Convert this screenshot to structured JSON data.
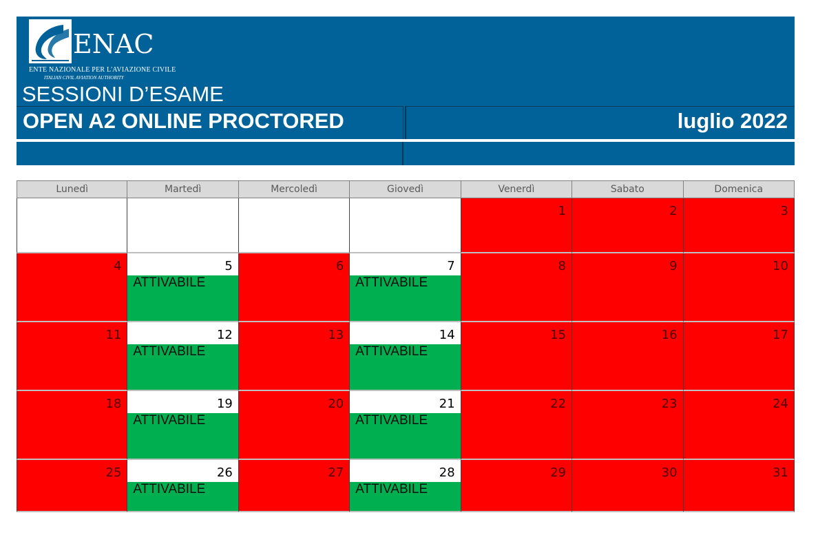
{
  "header": {
    "logo_word": "ENAC",
    "logo_sub1": "ENTE NAZIONALE PER L'AVIAZIONE CIVILE",
    "logo_sub2": "ITALIAN CIVIL AVIATION AUTHORITY",
    "sessions_title": "SESSIONI D’ESAME",
    "exam_title": "OPEN A2 ONLINE PROCTORED",
    "month": "luglio 2022"
  },
  "colors": {
    "header_blue": "#01629a",
    "unavailable_red": "#ff0000",
    "available_green": "#00b050",
    "weekday_header_gray": "#d9d9d9"
  },
  "weekdays": [
    "Lunedì",
    "Martedì",
    "Mercoledì",
    "Giovedì",
    "Venerdì",
    "Sabato",
    "Domenica"
  ],
  "weeks": [
    [
      {
        "day": "",
        "status": "empty",
        "label": ""
      },
      {
        "day": "",
        "status": "empty",
        "label": ""
      },
      {
        "day": "",
        "status": "empty",
        "label": ""
      },
      {
        "day": "",
        "status": "empty",
        "label": ""
      },
      {
        "day": "1",
        "status": "red",
        "label": ""
      },
      {
        "day": "2",
        "status": "red",
        "label": ""
      },
      {
        "day": "3",
        "status": "red",
        "label": ""
      }
    ],
    [
      {
        "day": "4",
        "status": "red",
        "label": ""
      },
      {
        "day": "5",
        "status": "green",
        "label": "ATTIVABILE"
      },
      {
        "day": "6",
        "status": "red",
        "label": ""
      },
      {
        "day": "7",
        "status": "green",
        "label": "ATTIVABILE"
      },
      {
        "day": "8",
        "status": "red",
        "label": ""
      },
      {
        "day": "9",
        "status": "red",
        "label": ""
      },
      {
        "day": "10",
        "status": "red",
        "label": ""
      }
    ],
    [
      {
        "day": "11",
        "status": "red",
        "label": ""
      },
      {
        "day": "12",
        "status": "green",
        "label": "ATTIVABILE"
      },
      {
        "day": "13",
        "status": "red",
        "label": ""
      },
      {
        "day": "14",
        "status": "green",
        "label": "ATTIVABILE"
      },
      {
        "day": "15",
        "status": "red",
        "label": ""
      },
      {
        "day": "16",
        "status": "red",
        "label": ""
      },
      {
        "day": "17",
        "status": "red",
        "label": ""
      }
    ],
    [
      {
        "day": "18",
        "status": "red",
        "label": ""
      },
      {
        "day": "19",
        "status": "green",
        "label": "ATTIVABILE"
      },
      {
        "day": "20",
        "status": "red",
        "label": ""
      },
      {
        "day": "21",
        "status": "green",
        "label": "ATTIVABILE"
      },
      {
        "day": "22",
        "status": "red",
        "label": ""
      },
      {
        "day": "23",
        "status": "red",
        "label": ""
      },
      {
        "day": "24",
        "status": "red",
        "label": ""
      }
    ],
    [
      {
        "day": "25",
        "status": "red",
        "label": ""
      },
      {
        "day": "26",
        "status": "green",
        "label": "ATTIVABILE"
      },
      {
        "day": "27",
        "status": "red",
        "label": ""
      },
      {
        "day": "28",
        "status": "green",
        "label": "ATTIVABILE"
      },
      {
        "day": "29",
        "status": "red",
        "label": ""
      },
      {
        "day": "30",
        "status": "red",
        "label": ""
      },
      {
        "day": "31",
        "status": "red",
        "label": ""
      }
    ]
  ]
}
